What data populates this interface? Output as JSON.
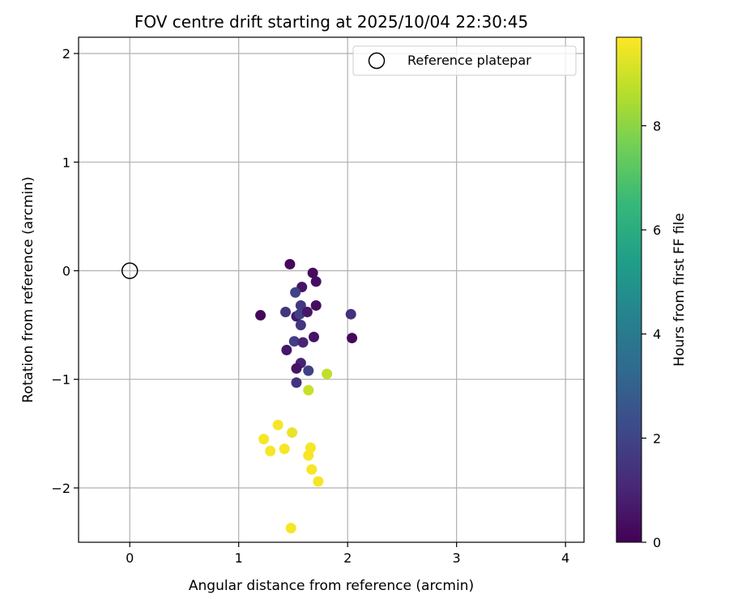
{
  "chart_data": {
    "type": "scatter",
    "title": "FOV centre drift starting at 2025/10/04 22:30:45",
    "xlabel": "Angular distance from reference (arcmin)",
    "ylabel": "Rotation from reference (arcmin)",
    "xlim": [
      -0.47,
      4.17
    ],
    "ylim": [
      -2.5,
      2.15
    ],
    "xticks": [
      0,
      1,
      2,
      3,
      4
    ],
    "yticks": [
      -2,
      -1,
      0,
      1,
      2
    ],
    "grid": true,
    "legend": {
      "label": "Reference platepar",
      "location": "upper right",
      "marker": "open-circle"
    },
    "reference_point": {
      "x": 0,
      "y": 0
    },
    "colorbar": {
      "label": "Hours from first FF file",
      "range": [
        0,
        9.7
      ],
      "ticks": [
        0,
        2,
        4,
        6,
        8
      ],
      "colormap": "viridis",
      "colors": [
        "#440154",
        "#482878",
        "#3e4989",
        "#31688e",
        "#26828e",
        "#1f9e89",
        "#35b779",
        "#6ece58",
        "#b5de2b",
        "#fde725"
      ]
    },
    "points": [
      {
        "x": 1.47,
        "y": 0.06,
        "h": 0.2
      },
      {
        "x": 1.68,
        "y": -0.02,
        "h": 0.3
      },
      {
        "x": 1.71,
        "y": -0.1,
        "h": 0.4
      },
      {
        "x": 1.58,
        "y": -0.15,
        "h": 0.5
      },
      {
        "x": 1.52,
        "y": -0.2,
        "h": 2.0
      },
      {
        "x": 1.57,
        "y": -0.32,
        "h": 1.6
      },
      {
        "x": 1.71,
        "y": -0.32,
        "h": 0.3
      },
      {
        "x": 1.2,
        "y": -0.41,
        "h": 0.2
      },
      {
        "x": 1.43,
        "y": -0.38,
        "h": 1.5
      },
      {
        "x": 1.53,
        "y": -0.42,
        "h": 0.6
      },
      {
        "x": 1.56,
        "y": -0.4,
        "h": 1.9
      },
      {
        "x": 1.63,
        "y": -0.38,
        "h": 0.6
      },
      {
        "x": 1.57,
        "y": -0.5,
        "h": 1.5
      },
      {
        "x": 2.03,
        "y": -0.4,
        "h": 1.3
      },
      {
        "x": 2.04,
        "y": -0.62,
        "h": 0.2
      },
      {
        "x": 1.69,
        "y": -0.61,
        "h": 0.5
      },
      {
        "x": 1.51,
        "y": -0.65,
        "h": 1.8
      },
      {
        "x": 1.59,
        "y": -0.66,
        "h": 1.0
      },
      {
        "x": 1.44,
        "y": -0.73,
        "h": 0.6
      },
      {
        "x": 1.57,
        "y": -0.85,
        "h": 0.9
      },
      {
        "x": 1.53,
        "y": -0.9,
        "h": 0.5
      },
      {
        "x": 1.64,
        "y": -0.92,
        "h": 1.9
      },
      {
        "x": 1.81,
        "y": -0.95,
        "h": 8.8
      },
      {
        "x": 1.53,
        "y": -1.03,
        "h": 1.4
      },
      {
        "x": 1.64,
        "y": -1.1,
        "h": 8.9
      },
      {
        "x": 1.36,
        "y": -1.42,
        "h": 9.6
      },
      {
        "x": 1.49,
        "y": -1.49,
        "h": 9.4
      },
      {
        "x": 1.23,
        "y": -1.55,
        "h": 9.6
      },
      {
        "x": 1.29,
        "y": -1.66,
        "h": 9.6
      },
      {
        "x": 1.42,
        "y": -1.64,
        "h": 9.6
      },
      {
        "x": 1.66,
        "y": -1.63,
        "h": 9.6
      },
      {
        "x": 1.64,
        "y": -1.7,
        "h": 9.6
      },
      {
        "x": 1.67,
        "y": -1.83,
        "h": 9.6
      },
      {
        "x": 1.73,
        "y": -1.94,
        "h": 9.6
      },
      {
        "x": 1.48,
        "y": -2.37,
        "h": 9.6
      }
    ]
  }
}
